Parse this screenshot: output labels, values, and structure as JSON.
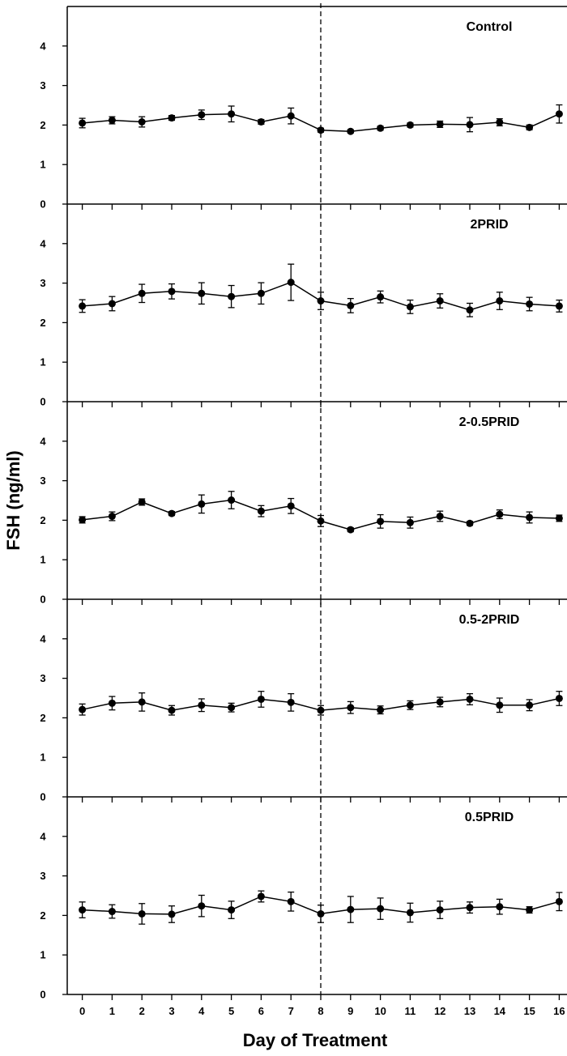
{
  "chart_data": {
    "type": "line",
    "xlabel": "Day of Treatment",
    "ylabel": "FSH (ng/ml)",
    "x": [
      0,
      1,
      2,
      3,
      4,
      5,
      6,
      7,
      8,
      9,
      10,
      11,
      12,
      13,
      14,
      15,
      16
    ],
    "xticks": [
      "0",
      "1",
      "2",
      "3",
      "4",
      "5",
      "6",
      "7",
      "8",
      "9",
      "10",
      "11",
      "12",
      "13",
      "14",
      "15",
      "16"
    ],
    "yticks": [
      "0",
      "1",
      "2",
      "3",
      "4"
    ],
    "ylim": [
      0,
      5
    ],
    "xlim": [
      -0.8,
      16
    ],
    "reference_line_x": 8,
    "reference_line_style": "dashed",
    "markers": "filled-circle",
    "error_bars": true,
    "panels": [
      {
        "name": "Control",
        "values": [
          2.05,
          2.12,
          2.08,
          2.18,
          2.26,
          2.28,
          2.08,
          2.23,
          1.87,
          1.84,
          1.92,
          2.0,
          2.02,
          2.01,
          2.07,
          1.94,
          2.28
        ],
        "errors": [
          0.12,
          0.09,
          0.13,
          0.06,
          0.12,
          0.2,
          0.06,
          0.2,
          0.05,
          0.04,
          0.05,
          0.05,
          0.08,
          0.18,
          0.09,
          0.06,
          0.23
        ]
      },
      {
        "name": "2PRID",
        "values": [
          2.42,
          2.48,
          2.74,
          2.79,
          2.74,
          2.66,
          2.74,
          3.02,
          2.55,
          2.43,
          2.65,
          2.4,
          2.55,
          2.32,
          2.55,
          2.47,
          2.42
        ],
        "errors": [
          0.16,
          0.18,
          0.23,
          0.19,
          0.27,
          0.28,
          0.27,
          0.46,
          0.22,
          0.18,
          0.15,
          0.17,
          0.18,
          0.17,
          0.22,
          0.17,
          0.15
        ]
      },
      {
        "name": "2-0.5PRID",
        "values": [
          2.01,
          2.1,
          2.46,
          2.17,
          2.41,
          2.51,
          2.23,
          2.36,
          1.98,
          1.76,
          1.97,
          1.94,
          2.1,
          1.92,
          2.15,
          2.07,
          2.05
        ],
        "errors": [
          0.08,
          0.11,
          0.08,
          0.05,
          0.23,
          0.22,
          0.14,
          0.19,
          0.14,
          0.05,
          0.17,
          0.14,
          0.13,
          0.05,
          0.11,
          0.14,
          0.08
        ]
      },
      {
        "name": "0.5-2PRID",
        "values": [
          2.21,
          2.37,
          2.4,
          2.19,
          2.32,
          2.26,
          2.47,
          2.39,
          2.19,
          2.26,
          2.2,
          2.32,
          2.4,
          2.47,
          2.32,
          2.32,
          2.49
        ],
        "errors": [
          0.14,
          0.17,
          0.23,
          0.12,
          0.16,
          0.11,
          0.2,
          0.22,
          0.12,
          0.15,
          0.1,
          0.11,
          0.12,
          0.14,
          0.18,
          0.14,
          0.18
        ]
      },
      {
        "name": "0.5PRID",
        "values": [
          2.14,
          2.1,
          2.04,
          2.03,
          2.24,
          2.14,
          2.48,
          2.35,
          2.04,
          2.15,
          2.17,
          2.07,
          2.14,
          2.2,
          2.22,
          2.14,
          2.35
        ],
        "errors": [
          0.2,
          0.17,
          0.26,
          0.21,
          0.27,
          0.22,
          0.14,
          0.24,
          0.22,
          0.33,
          0.27,
          0.24,
          0.22,
          0.14,
          0.19,
          0.08,
          0.23
        ]
      }
    ]
  }
}
